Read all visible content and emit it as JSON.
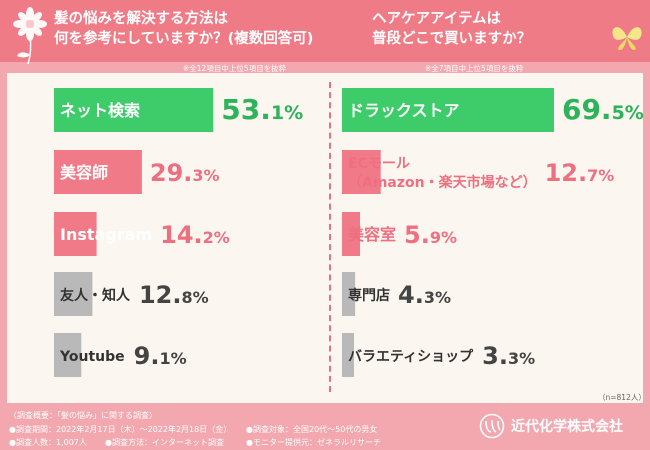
{
  "questions": {
    "left": {
      "title_line1": "髪の悩みを解決する方法は",
      "title_line2": "何を参考にしていますか？(複数回答可)",
      "note": "※全12項目中上位5項目を抜粋"
    },
    "right": {
      "title_line1": "ヘアケアアイテムは",
      "title_line2": "普段どこで買いますか？",
      "note": "※全7項目中上位5項目を抜粋"
    }
  },
  "chart_data": [
    {
      "type": "bar",
      "orientation": "horizontal",
      "categories": [
        "ネット検索",
        "美容師",
        "Instagram",
        "友人・知人",
        "Youtube"
      ],
      "values": [
        53.1,
        29.3,
        14.2,
        12.8,
        9.1
      ],
      "value_labels": [
        {
          "main": "53.",
          "decimal": "1%"
        },
        {
          "main": "29.",
          "decimal": "3%"
        },
        {
          "main": "14.",
          "decimal": "2%"
        },
        {
          "main": "12.",
          "decimal": "8%"
        },
        {
          "main": "9.",
          "decimal": "1%"
        }
      ],
      "bar_colors": [
        "#3ecb6a",
        "#f07a88",
        "#f07a88",
        "#b9b9b9",
        "#b9b9b9"
      ],
      "label_colors": [
        "#ffffff",
        "#ffffff",
        "#ffffff",
        "#333333",
        "#333333"
      ],
      "value_colors": [
        "#2db35a",
        "#ee6f80",
        "#ee6f80",
        "#444444",
        "#444444"
      ],
      "xlim": [
        0,
        100
      ]
    },
    {
      "type": "bar",
      "orientation": "horizontal",
      "categories": [
        "ドラックストア",
        "ECモール\n（Amazon・楽天市場など）",
        "美容室",
        "専門店",
        "バラエティショップ"
      ],
      "values": [
        69.5,
        12.7,
        5.9,
        4.3,
        3.3
      ],
      "value_labels": [
        {
          "main": "69.",
          "decimal": "5%"
        },
        {
          "main": "12.",
          "decimal": "7%"
        },
        {
          "main": "5.",
          "decimal": "9%"
        },
        {
          "main": "4.",
          "decimal": "3%"
        },
        {
          "main": "3.",
          "decimal": "3%"
        }
      ],
      "bar_colors": [
        "#3ecb6a",
        "#f07a88",
        "#f07a88",
        "#b9b9b9",
        "#b9b9b9"
      ],
      "label_colors": [
        "#ffffff",
        "#ee6f80",
        "#ee6f80",
        "#333333",
        "#333333"
      ],
      "value_colors": [
        "#2db35a",
        "#ee6f80",
        "#ee6f80",
        "#444444",
        "#444444"
      ],
      "xlim": [
        0,
        100
      ]
    }
  ],
  "sample_size": "（n=812人）",
  "footer": {
    "title": "〈調査概要：「髪の悩み」に関する調査〉",
    "period": "●調査期間：2022年2月17日（木）〜2022年2月18日（金）",
    "target": "●調査対象：全国20代〜50代の男女",
    "people": "●調査人数：1,007人",
    "method": "●調査方法：インターネット調査",
    "provider": "●モニター提供元：ゼネラルリサーチ"
  },
  "company": {
    "name": "近代化学株式会社",
    "logo_icon": "company-logo-icon"
  },
  "colors": {
    "background": "#f3a7ae",
    "header": "#ee7b86",
    "panel": "#fbf6ef",
    "green": "#3ecb6a",
    "pink": "#f07a88",
    "gray": "#b9b9b9"
  }
}
